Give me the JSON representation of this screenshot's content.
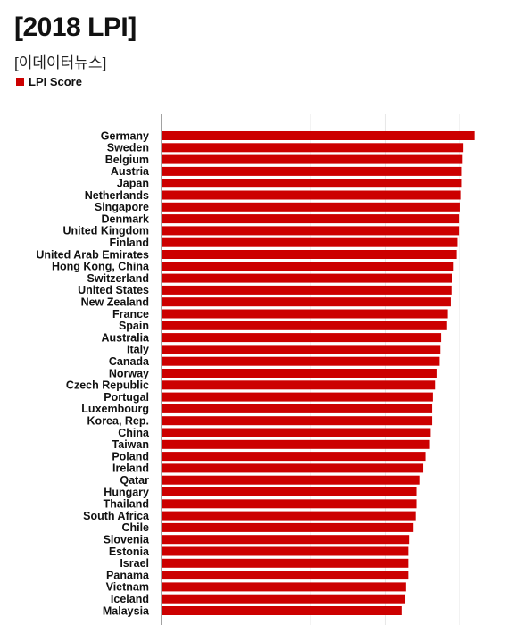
{
  "title": "[2018 LPI]",
  "subtitle": "[이데이터뉴스]",
  "colors": {
    "bar": "#cc0000",
    "grid": "#e8e8e8",
    "axis": "#444444"
  },
  "chart_data": {
    "type": "bar",
    "orientation": "horizontal",
    "series": [
      {
        "name": "LPI Score"
      }
    ],
    "xlim": [
      0,
      4.3
    ],
    "grid": true,
    "legend": "top-left",
    "categories": [
      "Germany",
      "Sweden",
      "Belgium",
      "Austria",
      "Japan",
      "Netherlands",
      "Singapore",
      "Denmark",
      "United Kingdom",
      "Finland",
      "United Arab Emirates",
      "Hong Kong, China",
      "Switzerland",
      "United States",
      "New Zealand",
      "France",
      "Spain",
      "Australia",
      "Italy",
      "Canada",
      "Norway",
      "Czech Republic",
      "Portugal",
      "Luxembourg",
      "Korea, Rep.",
      "China",
      "Taiwan",
      "Poland",
      "Ireland",
      "Qatar",
      "Hungary",
      "Thailand",
      "South Africa",
      "Chile",
      "Slovenia",
      "Estonia",
      "Israel",
      "Panama",
      "Vietnam",
      "Iceland",
      "Malaysia"
    ],
    "values": [
      4.2,
      4.05,
      4.04,
      4.03,
      4.03,
      4.02,
      4.0,
      3.99,
      3.99,
      3.97,
      3.96,
      3.92,
      3.9,
      3.89,
      3.88,
      3.84,
      3.83,
      3.75,
      3.74,
      3.73,
      3.7,
      3.68,
      3.64,
      3.63,
      3.63,
      3.61,
      3.6,
      3.54,
      3.51,
      3.47,
      3.42,
      3.42,
      3.41,
      3.38,
      3.32,
      3.31,
      3.31,
      3.31,
      3.28,
      3.27,
      3.22
    ]
  }
}
